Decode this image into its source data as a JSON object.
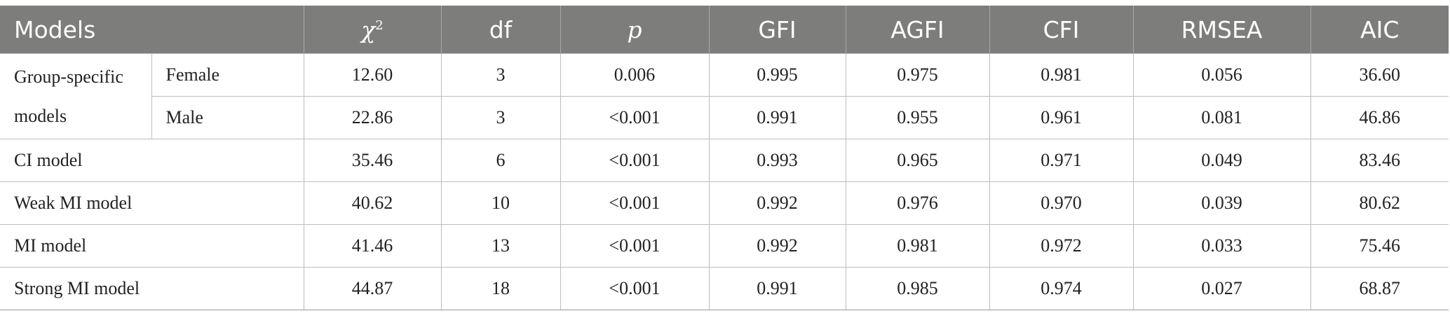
{
  "headers": {
    "models": "Models",
    "chi2_symbol": "χ",
    "chi2_power": "2",
    "df": "df",
    "p": "p",
    "gfi": "GFI",
    "agfi": "AGFI",
    "cfi": "CFI",
    "rmsea": "RMSEA",
    "aic": "AIC"
  },
  "group_label": "Group-specific models",
  "rows": [
    {
      "label": "Female",
      "chi2": "12.60",
      "df": "3",
      "p": "0.006",
      "gfi": "0.995",
      "agfi": "0.975",
      "cfi": "0.981",
      "rmsea": "0.056",
      "aic": "36.60"
    },
    {
      "label": "Male",
      "chi2": "22.86",
      "df": "3",
      "p": "<0.001",
      "gfi": "0.991",
      "agfi": "0.955",
      "cfi": "0.961",
      "rmsea": "0.081",
      "aic": "46.86"
    },
    {
      "label": "CI model",
      "chi2": "35.46",
      "df": "6",
      "p": "<0.001",
      "gfi": "0.993",
      "agfi": "0.965",
      "cfi": "0.971",
      "rmsea": "0.049",
      "aic": "83.46"
    },
    {
      "label": "Weak MI model",
      "chi2": "40.62",
      "df": "10",
      "p": "<0.001",
      "gfi": "0.992",
      "agfi": "0.976",
      "cfi": "0.970",
      "rmsea": "0.039",
      "aic": "80.62"
    },
    {
      "label": "MI model",
      "chi2": "41.46",
      "df": "13",
      "p": "<0.001",
      "gfi": "0.992",
      "agfi": "0.981",
      "cfi": "0.972",
      "rmsea": "0.033",
      "aic": "75.46"
    },
    {
      "label": "Strong MI model",
      "chi2": "44.87",
      "df": "18",
      "p": "<0.001",
      "gfi": "0.991",
      "agfi": "0.985",
      "cfi": "0.974",
      "rmsea": "0.027",
      "aic": "68.87"
    }
  ]
}
